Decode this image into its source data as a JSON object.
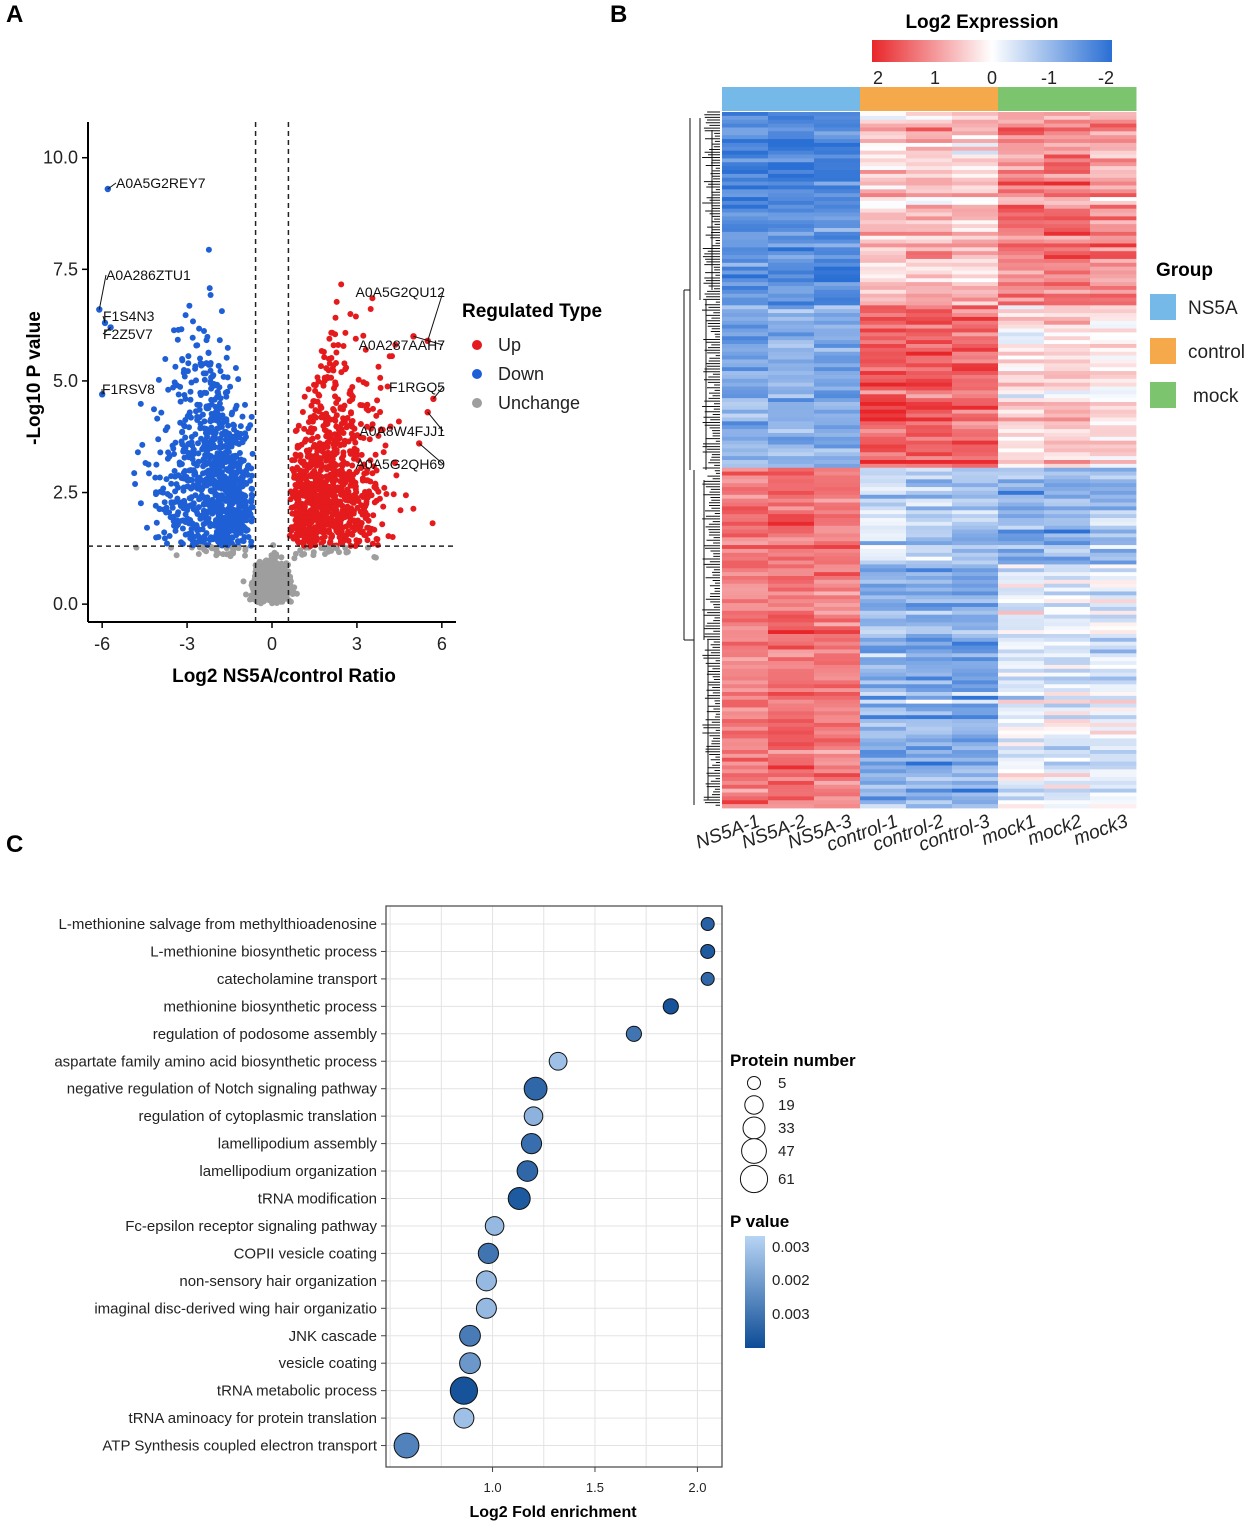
{
  "panels": {
    "a": "A",
    "b": "B",
    "c": "C"
  },
  "chart_data": [
    {
      "type": "scatter",
      "subtype": "volcano",
      "title": "",
      "xlabel": "Log2 NS5A/control Ratio",
      "ylabel": "-Log10 P value",
      "xlim": [
        -6.5,
        6.5
      ],
      "ylim": [
        -0.4,
        10.8
      ],
      "xticks": [
        -6,
        -3,
        0,
        3,
        6
      ],
      "xtick_labels": [
        "-6",
        "-3",
        "0",
        "3",
        "6"
      ],
      "yticks": [
        0,
        2.5,
        5,
        7.5,
        10
      ],
      "ytick_labels": [
        "0.0",
        "2.5",
        "5.0",
        "7.5",
        "10.0"
      ],
      "thresholds": {
        "log2_ratio": [
          -0.58,
          0.58
        ],
        "neg_log10_p": 1.3
      },
      "legend": {
        "title": "Regulated Type",
        "entries": [
          {
            "label": "Up",
            "color": "#e41a1c"
          },
          {
            "label": "Down",
            "color": "#1f5fd6"
          },
          {
            "label": "Unchange",
            "color": "#9e9e9e"
          }
        ]
      },
      "highlight_points": [
        {
          "label": "A0A5G2REY7",
          "x": -5.8,
          "y": 9.3,
          "group": "Down"
        },
        {
          "label": "A0A286ZTU1",
          "x": -6.1,
          "y": 6.6,
          "group": "Down"
        },
        {
          "label": "F1S4N3",
          "x": -5.9,
          "y": 6.3,
          "group": "Down"
        },
        {
          "label": "F2Z5V7",
          "x": -5.7,
          "y": 6.2,
          "group": "Down"
        },
        {
          "label": "F1RSV8",
          "x": -6.0,
          "y": 4.7,
          "group": "Down"
        },
        {
          "label": "A0A5G2QU12",
          "x": 5.5,
          "y": 5.9,
          "group": "Up"
        },
        {
          "label": "A0A287AAH7",
          "x": 5.0,
          "y": 6.0,
          "group": "Up"
        },
        {
          "label": "F1RGQ5",
          "x": 5.7,
          "y": 4.6,
          "group": "Up"
        },
        {
          "label": "A0A8W4FJJ1",
          "x": 5.5,
          "y": 4.3,
          "group": "Up"
        },
        {
          "label": "A0A5G2QH69",
          "x": 5.2,
          "y": 3.6,
          "group": "Up"
        }
      ]
    },
    {
      "type": "heatmap",
      "title": "Log2 Expression",
      "colorbar_ticks": [
        "2",
        "1",
        "0",
        "-1",
        "-2"
      ],
      "columns": [
        "NS5A-1",
        "NS5A-2",
        "NS5A-3",
        "control-1",
        "control-2",
        "control-3",
        "mock1",
        "mock2",
        "mock3"
      ],
      "column_groups": [
        "NS5A",
        "NS5A",
        "NS5A",
        "control",
        "control",
        "control",
        "mock",
        "mock",
        "mock"
      ],
      "legend": {
        "title": "Group",
        "entries": [
          {
            "label": "NS5A",
            "color": "#74b9e8"
          },
          {
            "label": "control",
            "color": "#f5a94a"
          },
          {
            "label": "mock",
            "color": "#7cc46e"
          }
        ]
      },
      "row_clusters": [
        {
          "name": "cluster1",
          "pattern": [
            -1.6,
            -1.6,
            -1.6,
            0.5,
            0.6,
            0.5,
            1.1,
            1.2,
            1.0
          ]
        },
        {
          "name": "cluster2",
          "pattern": [
            -1.1,
            -1.1,
            -1.2,
            1.5,
            1.5,
            1.4,
            0.3,
            0.4,
            0.3
          ]
        },
        {
          "name": "cluster3",
          "pattern": [
            1.3,
            1.4,
            1.3,
            -0.4,
            -0.6,
            -0.7,
            -1.0,
            -1.0,
            -0.8
          ]
        },
        {
          "name": "cluster4",
          "pattern": [
            1.2,
            1.3,
            1.2,
            -1.0,
            -1.1,
            -1.2,
            -0.2,
            -0.3,
            -0.3
          ]
        }
      ]
    },
    {
      "type": "scatter",
      "subtype": "bubble",
      "title": "",
      "xlabel": "Log2 Fold enrichment",
      "ylabel": "",
      "xlim": [
        0.48,
        2.12
      ],
      "xticks": [
        1.0,
        1.5,
        2.0
      ],
      "xtick_labels": [
        "1.0",
        "1.5",
        "2.0"
      ],
      "terms": [
        "L-methionine salvage from methylthioadenosine",
        "L-methionine biosynthetic process",
        "catecholamine transport",
        "methionine biosynthetic process",
        "regulation of podosome assembly",
        "aspartate family amino acid biosynthetic process",
        "negative regulation of  Notch signaling pathway",
        "regulation of cytoplasmic translation",
        "lamellipodium assembly",
        "lamellipodium organization",
        "tRNA modification",
        "Fc-epsilon receptor signaling pathway",
        "COPII vesicle coating",
        "non-sensory hair organization",
        "imaginal disc-derived wing hair organizatio",
        "JNK cascade",
        "vesicle coating",
        "tRNA metabolic process",
        "tRNA  aminoacy for protein translation",
        "ATP Synthesis coupled electron transport"
      ],
      "x": [
        2.05,
        2.05,
        2.05,
        1.87,
        1.69,
        1.32,
        1.21,
        1.2,
        1.19,
        1.17,
        1.13,
        1.01,
        0.98,
        0.97,
        0.97,
        0.89,
        0.89,
        0.86,
        0.86,
        0.58
      ],
      "protein_number": [
        5,
        7,
        5,
        10,
        10,
        17,
        37,
        20,
        26,
        27,
        33,
        20,
        26,
        25,
        25,
        28,
        28,
        61,
        25,
        47
      ],
      "p_value_level": [
        0.15,
        0.1,
        0.2,
        0.05,
        0.3,
        0.85,
        0.2,
        0.75,
        0.25,
        0.2,
        0.1,
        0.8,
        0.3,
        0.8,
        0.8,
        0.35,
        0.55,
        0.05,
        0.85,
        0.4
      ],
      "size_legend": {
        "title": "Protein number",
        "values": [
          5,
          19,
          33,
          47,
          61
        ],
        "labels": [
          "5",
          "19",
          "33",
          "47",
          "61"
        ]
      },
      "color_legend": {
        "title": "P value",
        "labels": [
          "0.003",
          "0.002",
          "0.003"
        ],
        "low_color": "#b7d4f4",
        "high_color": "#0d4c96"
      }
    }
  ]
}
